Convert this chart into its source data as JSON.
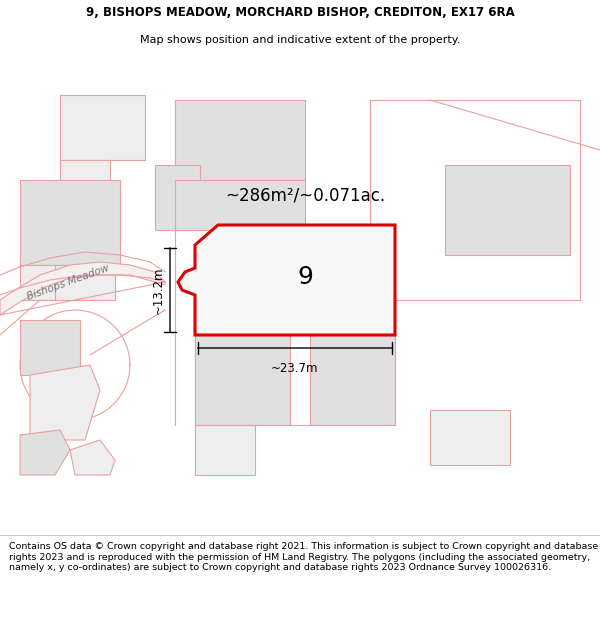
{
  "title_line1": "9, BISHOPS MEADOW, MORCHARD BISHOP, CREDITON, EX17 6RA",
  "title_line2": "Map shows position and indicative extent of the property.",
  "footer_text": "Contains OS data © Crown copyright and database right 2021. This information is subject to Crown copyright and database rights 2023 and is reproduced with the permission of HM Land Registry. The polygons (including the associated geometry, namely x, y co-ordinates) are subject to Crown copyright and database rights 2023 Ordnance Survey 100026316.",
  "area_label": "~286m²/~0.071ac.",
  "number_label": "9",
  "dim_width": "~23.7m",
  "dim_height": "~13.2m",
  "road_label": "Bishops Meadow",
  "map_bg": "#ffffff",
  "neighbor_outline": "#e8a0a0",
  "neighbor_fill_light": "#eeeeee",
  "neighbor_fill_dark": "#e0e0e0",
  "plot_fill": "#f8f8f8",
  "plot_outline": "#dd0000",
  "building_fill": "#d8d8d8",
  "building_outline": "#bbbbbb"
}
